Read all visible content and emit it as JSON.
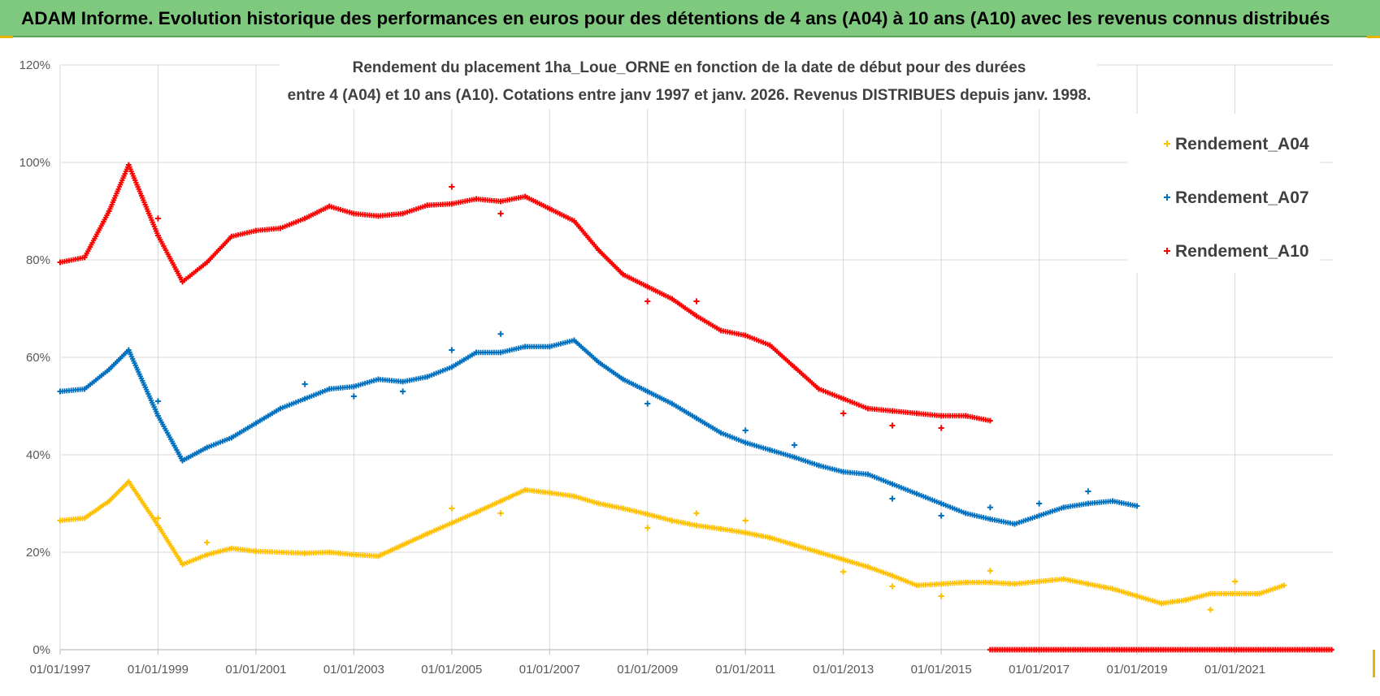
{
  "header": {
    "title": "ADAM Informe. Evolution historique des performances en euros pour des détentions de 4 ans (A04) à 10 ans (A10) avec les revenus connus distribués"
  },
  "chart_data": {
    "type": "scatter",
    "title_lines": [
      "Rendement du placement 1ha_Loue_ORNE en fonction de la date de début pour des durées",
      "entre 4 (A04) et 10 ans (A10). Cotations entre janv 1997 et janv. 2026. Revenus DISTRIBUES depuis janv. 1998."
    ],
    "xlabel": "",
    "ylabel": "",
    "xlim": [
      1997.0,
      2023.0
    ],
    "ylim": [
      0,
      120
    ],
    "x_ticks": [
      {
        "value": 1997,
        "label": "01/01/1997"
      },
      {
        "value": 1999,
        "label": "01/01/1999"
      },
      {
        "value": 2001,
        "label": "01/01/2001"
      },
      {
        "value": 2003,
        "label": "01/01/2003"
      },
      {
        "value": 2005,
        "label": "01/01/2005"
      },
      {
        "value": 2007,
        "label": "01/01/2007"
      },
      {
        "value": 2009,
        "label": "01/01/2009"
      },
      {
        "value": 2011,
        "label": "01/01/2011"
      },
      {
        "value": 2013,
        "label": "01/01/2013"
      },
      {
        "value": 2015,
        "label": "01/01/2015"
      },
      {
        "value": 2017,
        "label": "01/01/2017"
      },
      {
        "value": 2019,
        "label": "01/01/2019"
      },
      {
        "value": 2021,
        "label": "01/01/2021"
      }
    ],
    "y_ticks": [
      {
        "value": 0,
        "label": "0%"
      },
      {
        "value": 20,
        "label": "20%"
      },
      {
        "value": 40,
        "label": "40%"
      },
      {
        "value": 60,
        "label": "60%"
      },
      {
        "value": 80,
        "label": "80%"
      },
      {
        "value": 100,
        "label": "100%"
      },
      {
        "value": 120,
        "label": "120%"
      }
    ],
    "grid": true,
    "legend_position": "right",
    "series": [
      {
        "name": "Rendement_A04",
        "color": "#ffc000",
        "x": [
          1997.0,
          1997.5,
          1998.0,
          1998.4,
          1999.0,
          1999.5,
          2000.0,
          2000.5,
          2001.0,
          2002.0,
          2002.5,
          2003.0,
          2003.5,
          2004.0,
          2004.5,
          2005.0,
          2005.5,
          2006.0,
          2006.5,
          2007.0,
          2007.5,
          2008.0,
          2008.5,
          2009.0,
          2009.5,
          2010.0,
          2010.5,
          2011.0,
          2011.5,
          2012.0,
          2012.5,
          2013.0,
          2013.5,
          2014.0,
          2014.5,
          2015.0,
          2015.5,
          2016.0,
          2016.5,
          2017.0,
          2017.5,
          2018.0,
          2018.5,
          2019.0,
          2019.5,
          2020.0,
          2020.5,
          2021.0,
          2021.5,
          2022.0
        ],
        "values": [
          26.5,
          27.0,
          30.5,
          34.5,
          25.5,
          17.5,
          19.5,
          20.8,
          20.2,
          19.8,
          20.0,
          19.5,
          19.2,
          21.5,
          23.8,
          26.0,
          28.2,
          30.5,
          32.8,
          32.2,
          31.5,
          30.0,
          29.0,
          27.8,
          26.5,
          25.5,
          24.8,
          24.0,
          23.0,
          21.5,
          20.0,
          18.5,
          17.0,
          15.2,
          13.2,
          13.5,
          13.8,
          13.8,
          13.5,
          14.0,
          14.5,
          13.5,
          12.5,
          11.0,
          9.5,
          10.2,
          11.5,
          11.5,
          11.5,
          13.2
        ],
        "outliers_x": [
          2005.0,
          2006.0,
          1999.0,
          2000.0,
          2009.0,
          2010.0,
          2011.0,
          2013.0,
          2014.0,
          2015.0,
          2016.0,
          2020.5,
          2021.0
        ],
        "outliers_y": [
          29.0,
          28.0,
          27.0,
          22.0,
          25.0,
          28.0,
          26.5,
          16.0,
          13.0,
          11.0,
          16.2,
          8.2,
          14.0
        ]
      },
      {
        "name": "Rendement_A07",
        "color": "#0070c0",
        "x": [
          1997.0,
          1997.5,
          1998.0,
          1998.4,
          1999.0,
          1999.5,
          2000.0,
          2000.5,
          2001.0,
          2001.5,
          2002.0,
          2002.5,
          2003.0,
          2003.5,
          2004.0,
          2004.5,
          2005.0,
          2005.5,
          2006.0,
          2006.5,
          2007.0,
          2007.5,
          2008.0,
          2008.5,
          2009.0,
          2009.5,
          2010.0,
          2010.5,
          2011.0,
          2011.5,
          2012.0,
          2012.5,
          2013.0,
          2013.5,
          2014.0,
          2014.5,
          2015.0,
          2015.5,
          2016.0,
          2016.5,
          2017.0,
          2017.5,
          2018.0,
          2018.5,
          2019.0
        ],
        "values": [
          53.0,
          53.5,
          57.5,
          61.5,
          48.0,
          38.8,
          41.5,
          43.5,
          46.5,
          49.5,
          51.5,
          53.5,
          54.0,
          55.5,
          55.0,
          56.0,
          58.0,
          61.0,
          61.0,
          62.2,
          62.2,
          63.5,
          59.0,
          55.5,
          53.0,
          50.5,
          47.5,
          44.5,
          42.5,
          41.0,
          39.5,
          37.8,
          36.5,
          36.0,
          34.0,
          32.0,
          30.0,
          28.0,
          26.8,
          25.8,
          27.5,
          29.2,
          30.0,
          30.5,
          29.5
        ],
        "outliers_x": [
          1999.0,
          2002.0,
          2003.0,
          2004.0,
          2005.0,
          2006.0,
          2009.0,
          2011.0,
          2012.0,
          2014.0,
          2015.0,
          2016.0,
          2017.0,
          2018.0
        ],
        "outliers_y": [
          51.0,
          54.5,
          52.0,
          53.0,
          61.5,
          64.8,
          50.5,
          45.0,
          42.0,
          31.0,
          27.5,
          29.2,
          30.0,
          32.5
        ]
      },
      {
        "name": "Rendement_A10",
        "color": "#ff0000",
        "x": [
          1997.0,
          1997.5,
          1998.0,
          1998.4,
          1999.0,
          1999.5,
          2000.0,
          2000.5,
          2001.0,
          2001.5,
          2002.0,
          2002.5,
          2003.0,
          2003.5,
          2004.0,
          2004.5,
          2005.0,
          2005.5,
          2006.0,
          2006.5,
          2007.0,
          2007.5,
          2008.0,
          2008.5,
          2009.0,
          2009.5,
          2010.0,
          2010.5,
          2011.0,
          2011.5,
          2012.0,
          2012.5,
          2013.0,
          2013.5,
          2014.0,
          2014.5,
          2015.0,
          2015.5,
          2016.0
        ],
        "values": [
          79.5,
          80.5,
          90.0,
          99.5,
          85.0,
          75.5,
          79.5,
          84.8,
          86.0,
          86.5,
          88.5,
          91.0,
          89.5,
          89.0,
          89.5,
          91.2,
          91.5,
          92.5,
          92.0,
          93.0,
          90.5,
          88.0,
          82.0,
          77.0,
          74.5,
          72.0,
          68.5,
          65.5,
          64.5,
          62.5,
          58.0,
          53.5,
          51.5,
          49.5,
          49.0,
          48.5,
          48.0,
          48.0,
          47.0
        ],
        "outliers_x": [
          1999.0,
          2005.0,
          2006.0,
          2009.0,
          2010.0,
          2013.0,
          2014.0,
          2015.0
        ],
        "outliers_y": [
          88.5,
          95.0,
          89.5,
          71.5,
          71.5,
          48.5,
          46.0,
          45.5
        ],
        "zero_segment": {
          "x_start": 2016.0,
          "x_end": 2023.0,
          "value": 0
        }
      }
    ]
  }
}
